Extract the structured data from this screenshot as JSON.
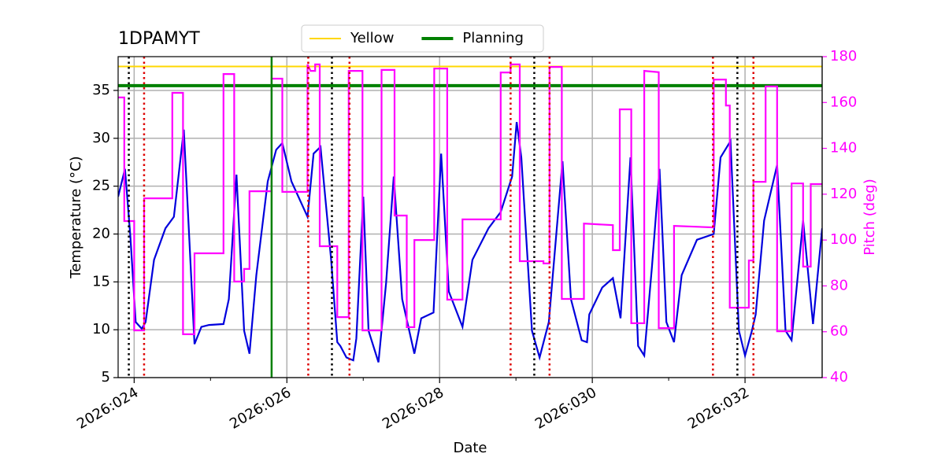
{
  "chart_data": {
    "type": "line",
    "title": "1DPAMYT",
    "x_label": "Date",
    "y_label": "Temperature (°C)",
    "y2_label": "Pitch (deg)",
    "xlim": [
      23.79,
      33.01
    ],
    "xticks": [
      {
        "value": 24,
        "label": "2026:024"
      },
      {
        "value": 26,
        "label": "2026:026"
      },
      {
        "value": 28,
        "label": "2026:028"
      },
      {
        "value": 30,
        "label": "2026:030"
      },
      {
        "value": 32,
        "label": "2026:032"
      }
    ],
    "xminorticks": [
      25,
      27,
      29,
      31
    ],
    "ylim": [
      5,
      38.53
    ],
    "yticks": [
      5,
      10,
      15,
      20,
      25,
      30,
      35
    ],
    "y2lim": [
      40,
      180
    ],
    "y2ticks": [
      40,
      60,
      80,
      100,
      120,
      140,
      160,
      180
    ],
    "y2_color": "#ff00ff",
    "grid": true,
    "legend": "upper center outside",
    "series": [
      {
        "color": "#0000dd",
        "x": [
          23.79,
          23.88,
          23.95,
          24.02,
          24.1,
          24.15,
          24.26,
          24.41,
          24.52,
          24.65,
          24.72,
          24.79,
          24.88,
          24.98,
          25.17,
          25.24,
          25.34,
          25.44,
          25.51,
          25.6,
          25.75,
          25.86,
          25.94,
          26.06,
          26.27,
          26.35,
          26.44,
          26.58,
          26.66,
          26.7,
          26.78,
          26.87,
          26.91,
          27.0,
          27.07,
          27.2,
          27.3,
          27.4,
          27.51,
          27.67,
          27.76,
          27.92,
          28.02,
          28.12,
          28.3,
          28.43,
          28.64,
          28.8,
          28.95,
          29.01,
          29.07,
          29.21,
          29.31,
          29.43,
          29.61,
          29.72,
          29.86,
          29.93,
          29.96,
          30.13,
          30.27,
          30.37,
          30.5,
          30.6,
          30.68,
          30.78,
          30.88,
          30.97,
          31.07,
          31.17,
          31.37,
          31.59,
          31.68,
          31.81,
          31.92,
          32.0,
          32.09,
          32.14,
          32.25,
          32.42,
          32.53,
          32.61,
          32.76,
          32.89,
          33.01
        ],
        "values": [
          23.9,
          26.8,
          19.8,
          10.8,
          10.1,
          10.8,
          17.3,
          20.6,
          21.8,
          30.9,
          19.8,
          8.5,
          10.3,
          10.5,
          10.6,
          13.2,
          26.2,
          9.9,
          7.5,
          15.7,
          25.5,
          28.8,
          29.5,
          25.5,
          21.8,
          28.4,
          29.1,
          17.3,
          8.7,
          8.3,
          7.1,
          6.8,
          9.1,
          23.9,
          9.9,
          6.6,
          14.9,
          26.0,
          13.2,
          7.5,
          11.2,
          11.8,
          28.4,
          14.0,
          10.3,
          17.3,
          20.6,
          22.3,
          26.0,
          31.7,
          28.0,
          9.9,
          7.1,
          10.8,
          27.6,
          13.2,
          8.9,
          8.7,
          11.6,
          14.4,
          15.4,
          11.2,
          28.0,
          8.3,
          7.3,
          16.5,
          26.8,
          10.8,
          8.7,
          15.7,
          19.4,
          20.0,
          28.0,
          29.7,
          9.9,
          7.3,
          9.9,
          11.6,
          21.4,
          27.2,
          9.9,
          8.9,
          21.4,
          10.6,
          20.6
        ]
      },
      {
        "color": "#ff00ff",
        "axis": "y2",
        "x": [
          23.79,
          23.87,
          23.87,
          24.0,
          24.0,
          24.13,
          24.13,
          24.5,
          24.5,
          24.64,
          24.64,
          24.79,
          24.79,
          25.17,
          25.17,
          25.31,
          25.31,
          25.44,
          25.44,
          25.51,
          25.51,
          25.8,
          25.8,
          25.94,
          25.94,
          26.27,
          26.27,
          26.31,
          26.37,
          26.37,
          26.43,
          26.43,
          26.66,
          26.66,
          26.81,
          26.81,
          26.99,
          26.99,
          27.24,
          27.24,
          27.41,
          27.41,
          27.57,
          27.57,
          27.67,
          27.67,
          27.93,
          27.93,
          28.1,
          28.1,
          28.3,
          28.3,
          28.8,
          28.8,
          28.93,
          28.93,
          29.05,
          29.05,
          29.36,
          29.36,
          29.44,
          29.44,
          29.6,
          29.6,
          29.89,
          29.89,
          30.27,
          30.27,
          30.36,
          30.36,
          30.51,
          30.51,
          30.68,
          30.68,
          30.87,
          30.87,
          31.07,
          31.07,
          31.59,
          31.59,
          31.75,
          31.75,
          31.8,
          31.8,
          32.05,
          32.05,
          32.11,
          32.11,
          32.27,
          32.27,
          32.42,
          32.42,
          32.61,
          32.61,
          32.76,
          32.76,
          32.86,
          32.86,
          33.01
        ],
        "values": [
          162.2,
          162.2,
          108.3,
          108.3,
          60.6,
          60.6,
          118.2,
          118.2,
          164.2,
          164.2,
          58.9,
          58.9,
          94.2,
          94.2,
          172.4,
          172.4,
          81.9,
          81.9,
          87.4,
          87.4,
          121.3,
          121.3,
          170.4,
          170.4,
          121.0,
          121.0,
          176.6,
          173.8,
          173.8,
          176.6,
          176.6,
          97.3,
          97.3,
          66.4,
          66.4,
          173.8,
          173.8,
          60.6,
          60.6,
          174.2,
          174.2,
          110.7,
          110.7,
          62.0,
          62.0,
          100.0,
          100.0,
          174.8,
          174.8,
          74.0,
          74.0,
          109.0,
          109.0,
          173.1,
          173.1,
          176.6,
          176.6,
          90.8,
          90.8,
          89.8,
          89.8,
          175.5,
          175.5,
          74.3,
          74.3,
          107.2,
          106.5,
          95.6,
          95.6,
          157.0,
          157.0,
          63.7,
          63.7,
          173.8,
          173.2,
          61.6,
          61.6,
          106.2,
          105.5,
          170.0,
          170.0,
          158.7,
          158.7,
          70.5,
          70.5,
          91.1,
          91.1,
          125.4,
          125.4,
          167.0,
          167.0,
          60.2,
          60.2,
          124.7,
          124.7,
          88.4,
          88.4,
          124.4,
          124.4
        ]
      }
    ],
    "hlines": [
      {
        "name": "Yellow",
        "y": 37.5,
        "color": "#ffd700"
      },
      {
        "name": "Planning",
        "y": 35.5,
        "color": "#008000"
      }
    ],
    "vlines": [
      {
        "x": [
          25.8
        ],
        "color": "#008000",
        "style": "solid"
      },
      {
        "x": [
          23.93,
          26.59,
          29.24,
          31.9
        ],
        "color": "#000000",
        "style": "dotted"
      },
      {
        "x": [
          24.13,
          26.28,
          26.82,
          28.93,
          29.44,
          31.58,
          32.11
        ],
        "color": "#dd0000",
        "style": "dotted"
      }
    ]
  }
}
